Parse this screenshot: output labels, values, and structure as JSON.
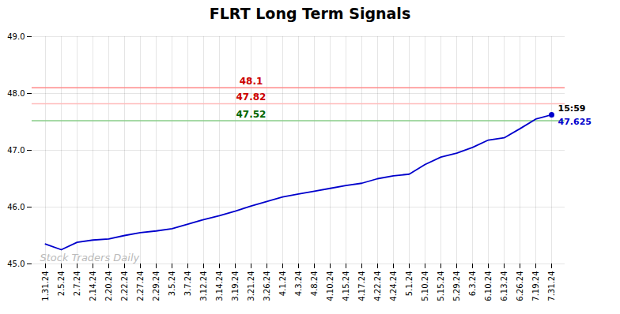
{
  "chart_data": {
    "type": "line",
    "title": "FLRT Long Term Signals",
    "categories": [
      "1.31.24",
      "2.5.24",
      "2.7.24",
      "2.14.24",
      "2.20.24",
      "2.22.24",
      "2.27.24",
      "2.29.24",
      "3.5.24",
      "3.7.24",
      "3.12.24",
      "3.14.24",
      "3.19.24",
      "3.21.24",
      "3.26.24",
      "4.1.24",
      "4.3.24",
      "4.8.24",
      "4.10.24",
      "4.15.24",
      "4.17.24",
      "4.22.24",
      "4.24.24",
      "5.1.24",
      "5.10.24",
      "5.15.24",
      "5.29.24",
      "6.3.24",
      "6.10.24",
      "6.13.24",
      "6.26.24",
      "7.19.24",
      "7.31.24"
    ],
    "values": [
      45.35,
      45.25,
      45.38,
      45.42,
      45.44,
      45.5,
      45.55,
      45.58,
      45.62,
      45.7,
      45.78,
      45.85,
      45.93,
      46.02,
      46.1,
      46.18,
      46.23,
      46.28,
      46.33,
      46.38,
      46.42,
      46.5,
      46.55,
      46.58,
      46.75,
      46.88,
      46.95,
      47.05,
      47.18,
      47.22,
      47.38,
      47.55,
      47.625
    ],
    "color": "#0000cc",
    "ylim": [
      45,
      49
    ],
    "yticks": [
      45,
      46,
      47,
      48,
      49
    ],
    "grid": true,
    "hlines": [
      {
        "y": 48.1,
        "color": "#ff8888",
        "label": "48.1",
        "label_color": "#cc0000"
      },
      {
        "y": 47.82,
        "color": "#ffbbbb",
        "label": "47.82",
        "label_color": "#cc0000"
      },
      {
        "y": 47.52,
        "color": "#88cc88",
        "label": "47.52",
        "label_color": "#006600"
      }
    ],
    "annotations": [
      {
        "text": "15:59",
        "x": "7.31.24",
        "y": 47.625,
        "color": "#000000"
      },
      {
        "text": "47.625",
        "x": "7.31.24",
        "y": 47.625,
        "color": "#0000cc"
      }
    ],
    "watermark": {
      "text": "Stock Traders Daily",
      "color": "#bbbbbb"
    }
  }
}
